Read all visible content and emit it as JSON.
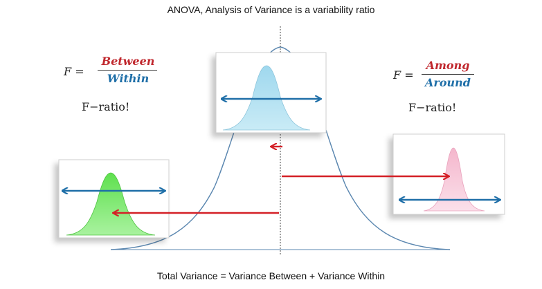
{
  "title": "ANOVA, Analysis of Variance is a variability ratio",
  "footer": "Total Variance = Variance Between + Variance Within",
  "left_formula": {
    "f_label": "F =",
    "numerator": "Between",
    "denominator": "Within",
    "ratio_text": "F−ratio!"
  },
  "right_formula": {
    "f_label": "F =",
    "numerator": "Among",
    "denominator": "Around",
    "ratio_text": "F−ratio!"
  },
  "colors": {
    "numerator": "#c0272d",
    "denominator": "#1f6fa8",
    "blue_arrow": "#1f6fa8",
    "red_arrow": "#d42027",
    "big_curve": "#5b87b0",
    "center_fill": "#a8dcef",
    "left_fill": "#6ee85f",
    "right_fill": "#f7c3d6"
  }
}
